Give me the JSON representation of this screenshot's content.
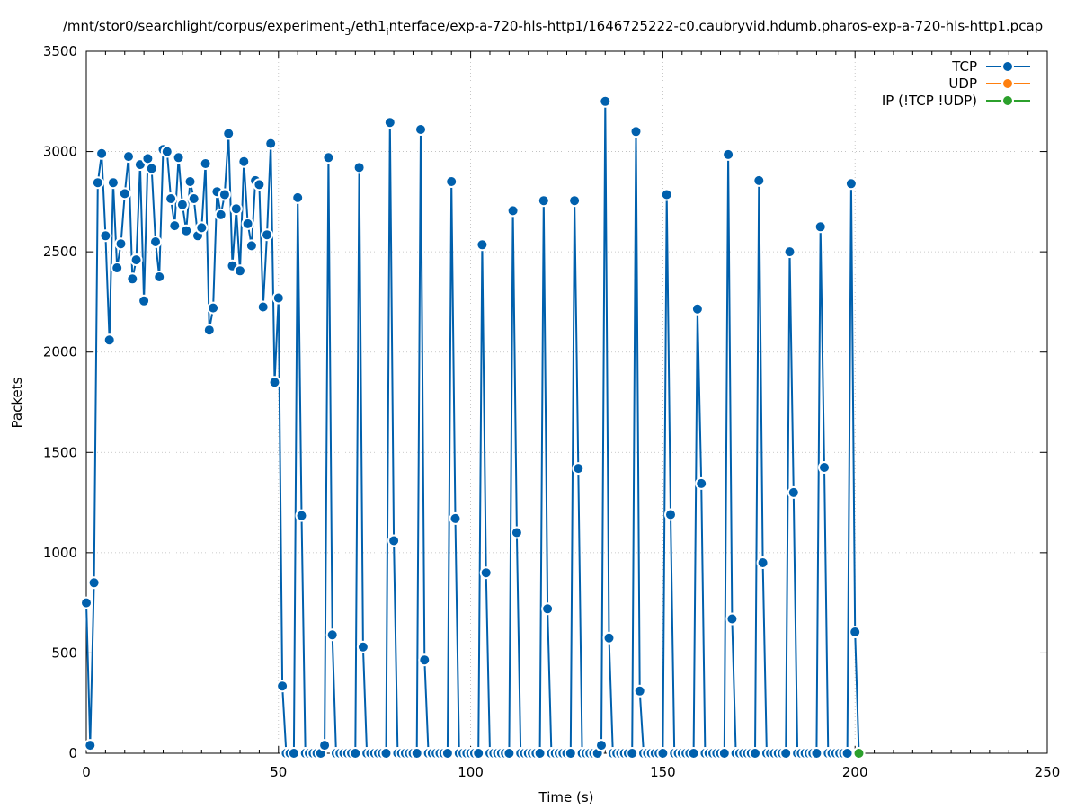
{
  "chart_data": {
    "type": "line",
    "title": "/mnt/stor0/searchlight/corpus/experiment",
    "title_sub": "3",
    "title_rest": "/eth1",
    "title_sub2": "i",
    "title_tail": "nterface/exp-a-720-hls-http1/1646725222-c0.caubryvid.hdumb.pharos-exp-a-720-hls-http1.pcap",
    "xlabel": "Time (s)",
    "ylabel": "Packets",
    "xlim": [
      0,
      250
    ],
    "ylim": [
      0,
      3500
    ],
    "xticks": [
      "0",
      "50",
      "100",
      "150",
      "200",
      "250"
    ],
    "yticks": [
      "0",
      "500",
      "1000",
      "1500",
      "2000",
      "2500",
      "3000",
      "3500"
    ],
    "grid": true,
    "legend_position": "top-right",
    "series": [
      {
        "name": "TCP",
        "color": "#0060ad",
        "points": [
          [
            0,
            750
          ],
          [
            1,
            40
          ],
          [
            2,
            850
          ],
          [
            3,
            2845
          ],
          [
            4,
            2990
          ],
          [
            5,
            2580
          ],
          [
            6,
            2060
          ],
          [
            7,
            2845
          ],
          [
            8,
            2420
          ],
          [
            9,
            2540
          ],
          [
            10,
            2790
          ],
          [
            11,
            2975
          ],
          [
            12,
            2365
          ],
          [
            13,
            2460
          ],
          [
            14,
            2935
          ],
          [
            15,
            2255
          ],
          [
            16,
            2965
          ],
          [
            17,
            2915
          ],
          [
            18,
            2550
          ],
          [
            19,
            2375
          ],
          [
            20,
            3010
          ],
          [
            21,
            3000
          ],
          [
            22,
            2765
          ],
          [
            23,
            2630
          ],
          [
            24,
            2970
          ],
          [
            25,
            2735
          ],
          [
            26,
            2605
          ],
          [
            27,
            2850
          ],
          [
            28,
            2765
          ],
          [
            29,
            2580
          ],
          [
            30,
            2620
          ],
          [
            31,
            2940
          ],
          [
            32,
            2110
          ],
          [
            33,
            2220
          ],
          [
            34,
            2800
          ],
          [
            35,
            2685
          ],
          [
            36,
            2785
          ],
          [
            37,
            3090
          ],
          [
            38,
            2430
          ],
          [
            39,
            2715
          ],
          [
            40,
            2405
          ],
          [
            41,
            2950
          ],
          [
            42,
            2640
          ],
          [
            43,
            2530
          ],
          [
            44,
            2855
          ],
          [
            45,
            2835
          ],
          [
            46,
            2225
          ],
          [
            47,
            2585
          ],
          [
            48,
            3040
          ],
          [
            49,
            1850
          ],
          [
            50,
            2270
          ],
          [
            51,
            335
          ],
          [
            52,
            0
          ],
          [
            53,
            0
          ],
          [
            54,
            0
          ],
          [
            55,
            2770
          ],
          [
            56,
            1185
          ],
          [
            57,
            0
          ],
          [
            58,
            0
          ],
          [
            59,
            0
          ],
          [
            60,
            0
          ],
          [
            61,
            0
          ],
          [
            62,
            40
          ],
          [
            63,
            2970
          ],
          [
            64,
            590
          ],
          [
            65,
            0
          ],
          [
            66,
            0
          ],
          [
            67,
            0
          ],
          [
            68,
            0
          ],
          [
            69,
            0
          ],
          [
            70,
            0
          ],
          [
            71,
            2920
          ],
          [
            72,
            530
          ],
          [
            73,
            0
          ],
          [
            74,
            0
          ],
          [
            75,
            0
          ],
          [
            76,
            0
          ],
          [
            77,
            0
          ],
          [
            78,
            0
          ],
          [
            79,
            3145
          ],
          [
            80,
            1060
          ],
          [
            81,
            0
          ],
          [
            82,
            0
          ],
          [
            83,
            0
          ],
          [
            84,
            0
          ],
          [
            85,
            0
          ],
          [
            86,
            0
          ],
          [
            87,
            3110
          ],
          [
            88,
            465
          ],
          [
            89,
            0
          ],
          [
            90,
            0
          ],
          [
            91,
            0
          ],
          [
            92,
            0
          ],
          [
            93,
            0
          ],
          [
            94,
            0
          ],
          [
            95,
            2850
          ],
          [
            96,
            1170
          ],
          [
            97,
            0
          ],
          [
            98,
            0
          ],
          [
            99,
            0
          ],
          [
            100,
            0
          ],
          [
            101,
            0
          ],
          [
            102,
            0
          ],
          [
            103,
            2535
          ],
          [
            104,
            900
          ],
          [
            105,
            0
          ],
          [
            106,
            0
          ],
          [
            107,
            0
          ],
          [
            108,
            0
          ],
          [
            109,
            0
          ],
          [
            110,
            0
          ],
          [
            111,
            2705
          ],
          [
            112,
            1100
          ],
          [
            113,
            0
          ],
          [
            114,
            0
          ],
          [
            115,
            0
          ],
          [
            116,
            0
          ],
          [
            117,
            0
          ],
          [
            118,
            0
          ],
          [
            119,
            2755
          ],
          [
            120,
            720
          ],
          [
            121,
            0
          ],
          [
            122,
            0
          ],
          [
            123,
            0
          ],
          [
            124,
            0
          ],
          [
            125,
            0
          ],
          [
            126,
            0
          ],
          [
            127,
            2755
          ],
          [
            128,
            1420
          ],
          [
            129,
            0
          ],
          [
            130,
            0
          ],
          [
            131,
            0
          ],
          [
            132,
            0
          ],
          [
            133,
            0
          ],
          [
            134,
            40
          ],
          [
            135,
            3250
          ],
          [
            136,
            575
          ],
          [
            137,
            0
          ],
          [
            138,
            0
          ],
          [
            139,
            0
          ],
          [
            140,
            0
          ],
          [
            141,
            0
          ],
          [
            142,
            0
          ],
          [
            143,
            3100
          ],
          [
            144,
            310
          ],
          [
            145,
            0
          ],
          [
            146,
            0
          ],
          [
            147,
            0
          ],
          [
            148,
            0
          ],
          [
            149,
            0
          ],
          [
            150,
            0
          ],
          [
            151,
            2785
          ],
          [
            152,
            1190
          ],
          [
            153,
            0
          ],
          [
            154,
            0
          ],
          [
            155,
            0
          ],
          [
            156,
            0
          ],
          [
            157,
            0
          ],
          [
            158,
            0
          ],
          [
            159,
            2215
          ],
          [
            160,
            1345
          ],
          [
            161,
            0
          ],
          [
            162,
            0
          ],
          [
            163,
            0
          ],
          [
            164,
            0
          ],
          [
            165,
            0
          ],
          [
            166,
            0
          ],
          [
            167,
            2985
          ],
          [
            168,
            670
          ],
          [
            169,
            0
          ],
          [
            170,
            0
          ],
          [
            171,
            0
          ],
          [
            172,
            0
          ],
          [
            173,
            0
          ],
          [
            174,
            0
          ],
          [
            175,
            2855
          ],
          [
            176,
            950
          ],
          [
            177,
            0
          ],
          [
            178,
            0
          ],
          [
            179,
            0
          ],
          [
            180,
            0
          ],
          [
            181,
            0
          ],
          [
            182,
            0
          ],
          [
            183,
            2500
          ],
          [
            184,
            1300
          ],
          [
            185,
            0
          ],
          [
            186,
            0
          ],
          [
            187,
            0
          ],
          [
            188,
            0
          ],
          [
            189,
            0
          ],
          [
            190,
            0
          ],
          [
            191,
            2625
          ],
          [
            192,
            1425
          ],
          [
            193,
            0
          ],
          [
            194,
            0
          ],
          [
            195,
            0
          ],
          [
            196,
            0
          ],
          [
            197,
            0
          ],
          [
            198,
            0
          ],
          [
            199,
            2840
          ],
          [
            200,
            605
          ],
          [
            201,
            0
          ]
        ]
      },
      {
        "name": "UDP",
        "color": "#ff7f0e",
        "points": []
      },
      {
        "name": "IP (!TCP  !UDP)",
        "color": "#2ca02c",
        "points": [
          [
            201,
            0
          ]
        ]
      }
    ]
  }
}
